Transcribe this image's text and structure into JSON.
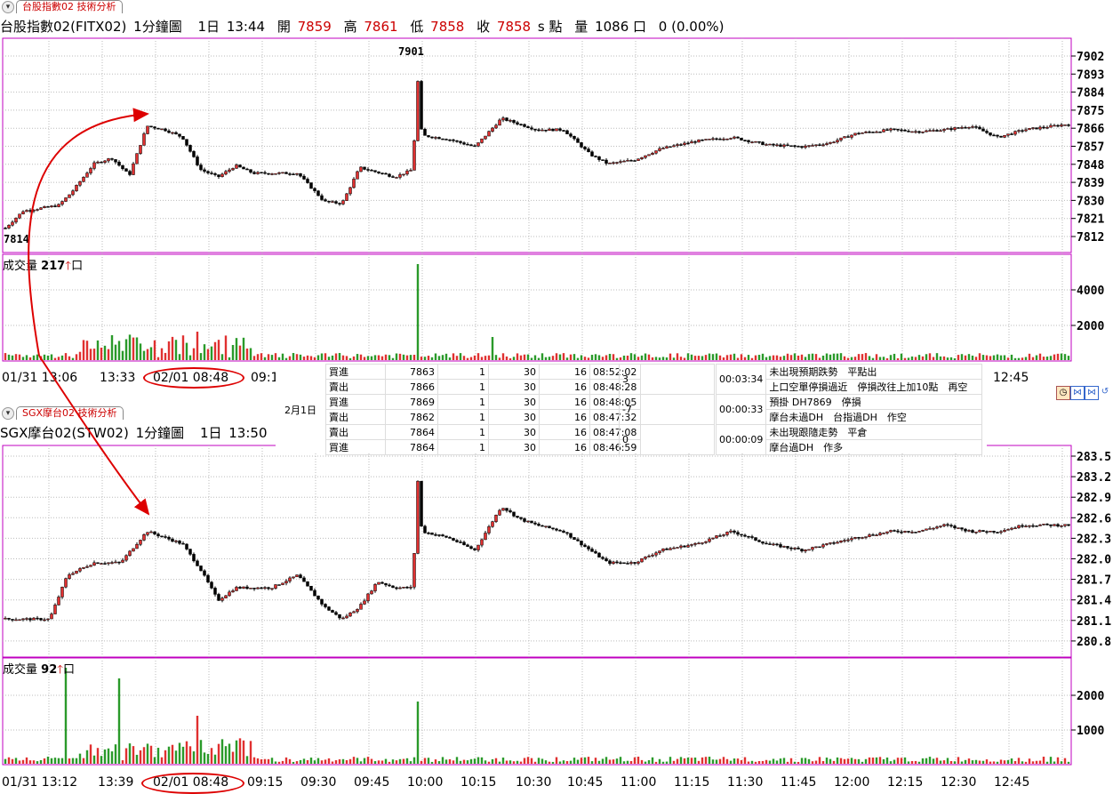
{
  "chart1": {
    "tab_label": "台股指數02 技術分析",
    "info": {
      "symbol": "台股指數02(FITX02)",
      "interval": "1分鐘圖",
      "day": "1日",
      "time": "13:44",
      "open_label": "開",
      "open": "7859",
      "high_label": "高",
      "high": "7861",
      "low_label": "低",
      "low": "7858",
      "close_label": "收",
      "close": "7858",
      "unit": "s 點",
      "vol_label": "量",
      "vol": "1086 口",
      "change": "0 (0.00%)"
    },
    "price_ticks": [
      "7902",
      "7893",
      "7884",
      "7875",
      "7866",
      "7857",
      "7848",
      "7839",
      "7830",
      "7821",
      "7812"
    ],
    "high_annot": "7901",
    "low_annot": "7814",
    "volume_label": "成交量",
    "volume_value": "217",
    "volume_unit": "口",
    "volume_ticks": [
      "4000",
      "2000"
    ],
    "time_axis": [
      "01/31 13:06",
      "13:33",
      "02/01 08:48",
      "09:1"
    ],
    "time_axis_right": "12:45"
  },
  "chart2": {
    "tab_label": "SGX摩台02 技術分析",
    "info": {
      "symbol": "SGX摩台02(STW02)",
      "interval": "1分鐘圖",
      "day": "1日",
      "time": "13:50"
    },
    "price_ticks": [
      "283.5",
      "283.2",
      "282.9",
      "282.6",
      "282.3",
      "282.0",
      "281.7",
      "281.4",
      "281.1",
      "280.8"
    ],
    "volume_label": "成交量",
    "volume_value": "92",
    "volume_unit": "口",
    "volume_ticks": [
      "2000",
      "1000"
    ],
    "time_axis": [
      "01/31 13:12",
      "13:39",
      "02/01 08:48",
      "09:15",
      "09:30",
      "09:45",
      "10:00",
      "10:15",
      "10:30",
      "10:45",
      "11:00",
      "11:15",
      "11:30",
      "11:45",
      "12:00",
      "12:15",
      "12:30",
      "12:45"
    ]
  },
  "orders": {
    "date": "2月1日",
    "rows": [
      {
        "side": "買進",
        "price": "7863",
        "qty": "1",
        "a": "30",
        "b": "16",
        "time": "08:52:02"
      },
      {
        "side": "賣出",
        "price": "7866",
        "qty": "1",
        "a": "30",
        "b": "16",
        "time": "08:48:28"
      },
      {
        "side": "買進",
        "price": "7869",
        "qty": "1",
        "a": "30",
        "b": "16",
        "time": "08:48:05"
      },
      {
        "side": "賣出",
        "price": "7862",
        "qty": "1",
        "a": "30",
        "b": "16",
        "time": "08:47:32"
      },
      {
        "side": "賣出",
        "price": "7864",
        "qty": "1",
        "a": "30",
        "b": "16",
        "time": "08:47:08"
      },
      {
        "side": "買進",
        "price": "7864",
        "qty": "1",
        "a": "30",
        "b": "16",
        "time": "08:46:59"
      }
    ],
    "pl": [
      "3",
      "-7",
      "0"
    ],
    "durations": [
      "00:03:34",
      "00:00:33",
      "00:00:09"
    ],
    "notes": [
      "未出現預期跌勢　平點出",
      "上口空單停損過近　停損改往上加10點　再空",
      "預掛 DH7869　停損",
      "摩台未過DH　台指過DH　作空",
      "未出現跟隨走勢　平倉",
      "摩台過DH　作多"
    ]
  },
  "chart_data": [
    {
      "type": "candlestick",
      "title": "台股指數02(FITX02)",
      "ylim": [
        7810,
        7905
      ],
      "points": [
        [
          0,
          7814
        ],
        [
          0.02,
          7823
        ],
        [
          0.06,
          7826
        ],
        [
          0.075,
          7833
        ],
        [
          0.1,
          7848
        ],
        [
          0.12,
          7851
        ],
        [
          0.14,
          7842
        ],
        [
          0.16,
          7868
        ],
        [
          0.18,
          7866
        ],
        [
          0.2,
          7862
        ],
        [
          0.22,
          7845
        ],
        [
          0.24,
          7841
        ],
        [
          0.26,
          7847
        ],
        [
          0.28,
          7843
        ],
        [
          0.3,
          7843
        ],
        [
          0.33,
          7843
        ],
        [
          0.36,
          7828
        ],
        [
          0.38,
          7827
        ],
        [
          0.4,
          7846
        ],
        [
          0.44,
          7841
        ],
        [
          0.46,
          7845
        ],
        [
          0.465,
          7895
        ],
        [
          0.47,
          7863
        ],
        [
          0.5,
          7861
        ],
        [
          0.53,
          7857
        ],
        [
          0.56,
          7872
        ],
        [
          0.58,
          7869
        ],
        [
          0.6,
          7866
        ],
        [
          0.63,
          7866
        ],
        [
          0.66,
          7853
        ],
        [
          0.68,
          7848
        ],
        [
          0.71,
          7850
        ],
        [
          0.74,
          7856
        ],
        [
          0.78,
          7860
        ],
        [
          0.82,
          7862
        ],
        [
          0.86,
          7858
        ],
        [
          0.9,
          7857
        ],
        [
          0.93,
          7859
        ],
        [
          0.96,
          7864
        ],
        [
          1.0,
          7866
        ],
        [
          1.03,
          7865
        ],
        [
          1.06,
          7866
        ],
        [
          1.09,
          7868
        ],
        [
          1.12,
          7862
        ],
        [
          1.15,
          7866
        ],
        [
          1.2,
          7869
        ]
      ]
    },
    {
      "type": "candlestick",
      "title": "SGX摩台02(STW02)",
      "ylim": [
        280.65,
        283.6
      ],
      "points": [
        [
          0,
          281.0
        ],
        [
          0.05,
          281.0
        ],
        [
          0.07,
          281.7
        ],
        [
          0.1,
          281.9
        ],
        [
          0.13,
          281.9
        ],
        [
          0.16,
          282.4
        ],
        [
          0.18,
          282.3
        ],
        [
          0.2,
          282.2
        ],
        [
          0.22,
          281.8
        ],
        [
          0.24,
          281.3
        ],
        [
          0.26,
          281.5
        ],
        [
          0.28,
          281.5
        ],
        [
          0.3,
          281.5
        ],
        [
          0.33,
          281.7
        ],
        [
          0.36,
          281.2
        ],
        [
          0.38,
          281.0
        ],
        [
          0.4,
          281.2
        ],
        [
          0.42,
          281.6
        ],
        [
          0.44,
          281.5
        ],
        [
          0.46,
          281.5
        ],
        [
          0.465,
          283.3
        ],
        [
          0.47,
          282.4
        ],
        [
          0.5,
          282.3
        ],
        [
          0.53,
          282.1
        ],
        [
          0.56,
          282.8
        ],
        [
          0.58,
          282.6
        ],
        [
          0.6,
          282.5
        ],
        [
          0.63,
          282.4
        ],
        [
          0.66,
          282.1
        ],
        [
          0.68,
          281.9
        ],
        [
          0.71,
          281.9
        ],
        [
          0.74,
          282.1
        ],
        [
          0.78,
          282.2
        ],
        [
          0.82,
          282.4
        ],
        [
          0.86,
          282.2
        ],
        [
          0.9,
          282.1
        ],
        [
          0.93,
          282.2
        ],
        [
          0.96,
          282.3
        ],
        [
          1.0,
          282.4
        ],
        [
          1.03,
          282.4
        ],
        [
          1.06,
          282.5
        ],
        [
          1.09,
          282.4
        ],
        [
          1.12,
          282.4
        ],
        [
          1.15,
          282.5
        ],
        [
          1.2,
          282.5
        ]
      ]
    }
  ]
}
